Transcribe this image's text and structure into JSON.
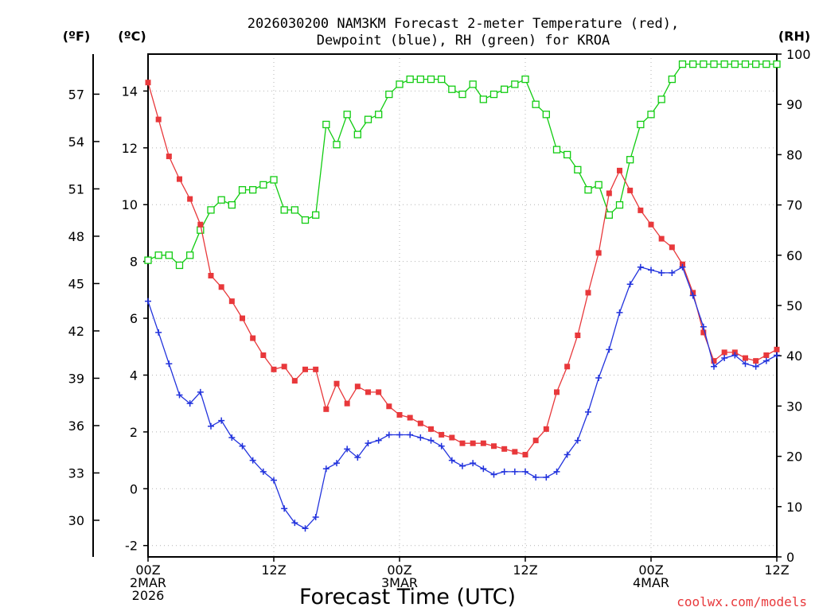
{
  "chart_data": {
    "type": "line",
    "title_line1": "2026030200 NAM3KM Forecast 2-meter Temperature (red),",
    "title_line2": "Dewpoint (blue), RH (green) for KROA",
    "xlabel": "Forecast Time (UTC)",
    "credit": "coolwx.com/models",
    "units": {
      "f": "(ºF)",
      "c": "(ºC)",
      "rh": "(RH)"
    },
    "x_range_hours": [
      0,
      60
    ],
    "x_ticks": [
      {
        "hour": 0,
        "lines": [
          "00Z",
          "2MAR",
          "2026"
        ]
      },
      {
        "hour": 12,
        "lines": [
          "12Z"
        ]
      },
      {
        "hour": 24,
        "lines": [
          "00Z",
          "3MAR"
        ]
      },
      {
        "hour": 36,
        "lines": [
          "12Z"
        ]
      },
      {
        "hour": 48,
        "lines": [
          "00Z",
          "4MAR"
        ]
      },
      {
        "hour": 60,
        "lines": [
          "12Z"
        ]
      }
    ],
    "y_c": {
      "range": [
        -2.4,
        15.3
      ],
      "ticks": [
        "-2",
        "0",
        "2",
        "4",
        "6",
        "8",
        "10",
        "12",
        "14"
      ]
    },
    "y_f": {
      "ticks": [
        "30",
        "33",
        "36",
        "39",
        "42",
        "45",
        "48",
        "51",
        "54",
        "57"
      ]
    },
    "y_rh": {
      "range": [
        0,
        100
      ],
      "ticks": [
        "0",
        "10",
        "20",
        "30",
        "40",
        "50",
        "60",
        "70",
        "80",
        "90",
        "100"
      ]
    },
    "colors": {
      "temperature": "#e8383b",
      "dewpoint": "#2233dd",
      "rh": "#11cc11",
      "credit": "#e8383b",
      "grid": "#b4b4b4"
    },
    "series": [
      {
        "name": "Temperature",
        "units": "C",
        "values": [
          14.3,
          13.0,
          11.7,
          10.9,
          10.2,
          9.3,
          7.5,
          7.1,
          6.6,
          6.0,
          5.3,
          4.7,
          4.2,
          4.3,
          3.8,
          4.2,
          4.2,
          2.8,
          3.7,
          3.0,
          3.6,
          3.4,
          3.4,
          2.9,
          2.6,
          2.5,
          2.3,
          2.1,
          1.9,
          1.8,
          1.6,
          1.6,
          1.6,
          1.5,
          1.4,
          1.3,
          1.2,
          1.7,
          2.1,
          3.4,
          4.3,
          5.4,
          6.9,
          8.3,
          10.4,
          11.2,
          10.5,
          9.8,
          9.3,
          8.8,
          8.5,
          7.9,
          6.9,
          5.5,
          4.5,
          4.8,
          4.8,
          4.6,
          4.5,
          4.7,
          4.9
        ]
      },
      {
        "name": "Dewpoint",
        "units": "C",
        "values": [
          6.6,
          5.5,
          4.4,
          3.3,
          3.0,
          3.4,
          2.2,
          2.4,
          1.8,
          1.5,
          1.0,
          0.6,
          0.3,
          -0.7,
          -1.2,
          -1.4,
          -1.0,
          0.7,
          0.9,
          1.4,
          1.1,
          1.6,
          1.7,
          1.9,
          1.9,
          1.9,
          1.8,
          1.7,
          1.5,
          1.0,
          0.8,
          0.9,
          0.7,
          0.5,
          0.6,
          0.6,
          0.6,
          0.4,
          0.4,
          0.6,
          1.2,
          1.7,
          2.7,
          3.9,
          4.9,
          6.2,
          7.2,
          7.8,
          7.7,
          7.6,
          7.6,
          7.8,
          6.8,
          5.7,
          4.3,
          4.6,
          4.7,
          4.4,
          4.3,
          4.5,
          4.7
        ]
      },
      {
        "name": "RH",
        "units": "%",
        "values": [
          59,
          60,
          60,
          58,
          60,
          65,
          69,
          71,
          70,
          73,
          73,
          74,
          75,
          69,
          69,
          67,
          68,
          86,
          82,
          88,
          84,
          87,
          88,
          92,
          94,
          95,
          95,
          95,
          95,
          93,
          92,
          94,
          91,
          92,
          93,
          94,
          95,
          90,
          88,
          81,
          80,
          77,
          73,
          74,
          68,
          70,
          79,
          86,
          88,
          91,
          95,
          98,
          98,
          98,
          98,
          98,
          98,
          98,
          98,
          98,
          98
        ]
      }
    ]
  }
}
